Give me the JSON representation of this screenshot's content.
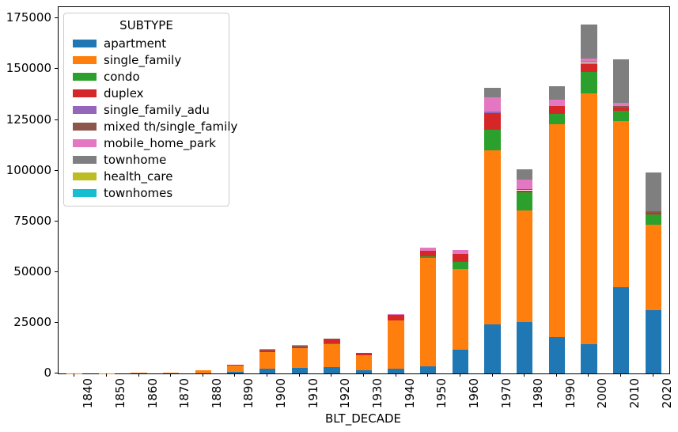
{
  "chart_data": {
    "type": "bar",
    "stacked": true,
    "title": "",
    "xlabel": "BLT_DECADE",
    "ylabel": "",
    "legend_title": "SUBTYPE",
    "legend_position": "upper-left",
    "grid": false,
    "ylim": [
      0,
      180600
    ],
    "yticks": [
      0,
      25000,
      50000,
      75000,
      100000,
      125000,
      150000,
      175000
    ],
    "categories": [
      "1840",
      "1850",
      "1860",
      "1870",
      "1880",
      "1890",
      "1900",
      "1910",
      "1920",
      "1930",
      "1940",
      "1950",
      "1960",
      "1970",
      "1980",
      "1990",
      "2000",
      "2010",
      "2020"
    ],
    "series": [
      {
        "name": "apartment",
        "color": "#1f77b4",
        "values": [
          0,
          0,
          0,
          0,
          0,
          800,
          2500,
          2800,
          3200,
          1500,
          2200,
          3400,
          11700,
          24100,
          25500,
          17900,
          14300,
          42500,
          31200
        ]
      },
      {
        "name": "single_family",
        "color": "#ff7f0e",
        "values": [
          100,
          100,
          200,
          500,
          1500,
          3100,
          8200,
          9900,
          11500,
          7300,
          23800,
          53600,
          39900,
          85900,
          55000,
          105100,
          123800,
          81800,
          42200
        ]
      },
      {
        "name": "condo",
        "color": "#2ca02c",
        "values": [
          0,
          0,
          0,
          0,
          0,
          0,
          0,
          0,
          300,
          0,
          0,
          700,
          3400,
          10200,
          9000,
          5000,
          10700,
          5100,
          5000
        ]
      },
      {
        "name": "duplex",
        "color": "#d62728",
        "values": [
          0,
          0,
          0,
          0,
          0,
          500,
          700,
          300,
          1700,
          1200,
          2700,
          2900,
          4000,
          8000,
          800,
          3900,
          3600,
          1500,
          800
        ]
      },
      {
        "name": "single_family_adu",
        "color": "#9467bd",
        "values": [
          0,
          0,
          0,
          0,
          0,
          0,
          0,
          0,
          0,
          0,
          0,
          0,
          0,
          900,
          0,
          0,
          700,
          0,
          0
        ]
      },
      {
        "name": "mixed th/single_family",
        "color": "#8c564b",
        "values": [
          0,
          0,
          0,
          0,
          0,
          0,
          200,
          500,
          300,
          0,
          0,
          0,
          0,
          0,
          500,
          0,
          700,
          1100,
          700
        ]
      },
      {
        "name": "mobile_home_park",
        "color": "#e377c2",
        "values": [
          0,
          0,
          0,
          0,
          0,
          0,
          300,
          500,
          0,
          0,
          600,
          1600,
          2000,
          6900,
          4600,
          3100,
          1500,
          1300,
          0
        ]
      },
      {
        "name": "townhome",
        "color": "#7f7f7f",
        "values": [
          0,
          0,
          0,
          0,
          0,
          0,
          0,
          0,
          0,
          0,
          0,
          0,
          0,
          5000,
          5100,
          6500,
          16700,
          21600,
          19000
        ]
      },
      {
        "name": "health_care",
        "color": "#bcbd22",
        "values": [
          0,
          0,
          0,
          0,
          0,
          0,
          0,
          0,
          0,
          0,
          0,
          0,
          0,
          0,
          0,
          0,
          0,
          0,
          0
        ]
      },
      {
        "name": "townhomes",
        "color": "#17becf",
        "values": [
          0,
          0,
          0,
          0,
          0,
          0,
          0,
          0,
          0,
          0,
          0,
          0,
          0,
          0,
          0,
          0,
          0,
          0,
          0
        ]
      }
    ]
  }
}
